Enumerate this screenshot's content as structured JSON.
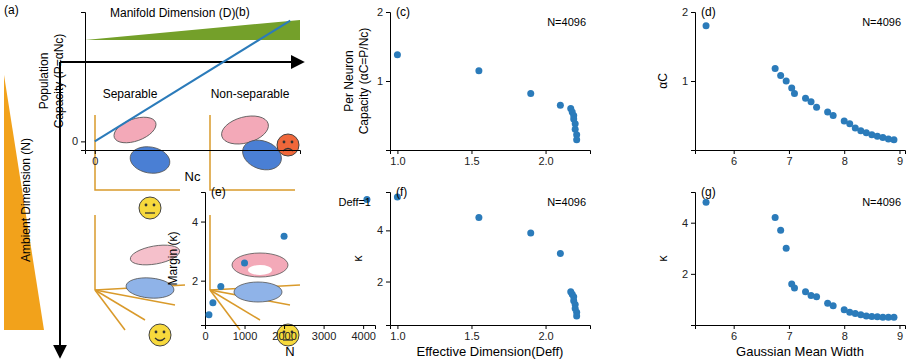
{
  "diagram": {
    "panel": "(a)",
    "top_label": "Manifold Dimension (D)",
    "left_label": "Ambient Dimension (N)",
    "columns": [
      "Separable",
      "Non-separable"
    ]
  },
  "chart_data": [
    {
      "panel": "(b)",
      "type": "line",
      "x_label": "Nc",
      "y_label": [
        "Population",
        "Capacity (P=αNc)"
      ],
      "x": [
        0,
        1
      ],
      "values": [
        0,
        1.4
      ],
      "color": "#2b7bba",
      "xlim": [
        -0.05,
        1.05
      ],
      "ylim": [
        -0.1,
        1.5
      ],
      "xticks": [
        0
      ],
      "yticks": [
        0
      ]
    },
    {
      "panel": "(c)",
      "type": "scatter",
      "annotation": "N=4096",
      "y_label": [
        "Per Neuron",
        "Capacity (αC=P/Nc)"
      ],
      "x": [
        1.0,
        1.55,
        1.9,
        2.1,
        2.17,
        2.18,
        2.19,
        2.19,
        2.2,
        2.2,
        2.21,
        2.21
      ],
      "values": [
        1.38,
        1.15,
        0.82,
        0.65,
        0.6,
        0.55,
        0.5,
        0.45,
        0.38,
        0.3,
        0.22,
        0.15
      ],
      "color": "#2b7bba",
      "xlim": [
        0.95,
        2.3
      ],
      "ylim": [
        0,
        2
      ],
      "xticks": [
        {
          "value": 1,
          "label": "1.0"
        },
        {
          "value": 1.5,
          "label": "1.5"
        },
        {
          "value": 2,
          "label": "2.0"
        }
      ],
      "yticks": [
        1,
        2
      ]
    },
    {
      "panel": "(d)",
      "type": "scatter",
      "annotation": "N=4096",
      "y_label": [
        "αC"
      ],
      "x": [
        5.5,
        6.75,
        6.85,
        6.95,
        7.05,
        7.1,
        7.3,
        7.4,
        7.5,
        7.7,
        7.8,
        8.0,
        8.1,
        8.2,
        8.3,
        8.4,
        8.5,
        8.6,
        8.7,
        8.8,
        8.9
      ],
      "values": [
        1.8,
        1.18,
        1.08,
        1.0,
        0.9,
        0.82,
        0.75,
        0.7,
        0.62,
        0.55,
        0.5,
        0.42,
        0.38,
        0.32,
        0.28,
        0.25,
        0.22,
        0.2,
        0.18,
        0.16,
        0.15
      ],
      "color": "#2b7bba",
      "xlim": [
        5.3,
        9.1
      ],
      "ylim": [
        0,
        2
      ],
      "xticks": [
        6,
        7,
        8,
        9
      ],
      "yticks": [
        1,
        2
      ]
    },
    {
      "panel": "(e)",
      "type": "scatter",
      "annotation": "Deff=1",
      "x_label": "N",
      "y_label": [
        "Margin (κ)"
      ],
      "x": [
        100,
        200,
        400,
        1000,
        2000,
        4096
      ],
      "values": [
        0.85,
        1.25,
        1.8,
        2.6,
        3.5,
        4.75
      ],
      "color": "#2b7bba",
      "xlim": [
        0,
        4300
      ],
      "ylim": [
        0.5,
        5
      ],
      "xticks": [
        0,
        1000,
        2000,
        3000,
        4000
      ],
      "yticks": [
        2,
        4
      ]
    },
    {
      "panel": "(f)",
      "type": "scatter",
      "annotation": "N=4096",
      "x_label": "Effective Dimension(Deff)",
      "y_label": [
        "κ"
      ],
      "x": [
        1.0,
        1.55,
        1.9,
        2.1,
        2.17,
        2.18,
        2.19,
        2.19,
        2.2,
        2.2,
        2.21,
        2.21
      ],
      "values": [
        5.3,
        4.5,
        3.9,
        3.1,
        1.6,
        1.5,
        1.4,
        1.25,
        1.1,
        0.95,
        0.8,
        0.65
      ],
      "color": "#2b7bba",
      "xlim": [
        0.95,
        2.3
      ],
      "ylim": [
        0.3,
        5.5
      ],
      "xticks": [
        {
          "value": 1,
          "label": "1.0"
        },
        {
          "value": 1.5,
          "label": "1.5"
        },
        {
          "value": 2,
          "label": "2.0"
        }
      ],
      "yticks": [
        2,
        4
      ]
    },
    {
      "panel": "(g)",
      "type": "scatter",
      "annotation": "N=4096",
      "x_label": "Gaussian Mean Width",
      "y_label": [
        "κ"
      ],
      "x": [
        5.5,
        6.75,
        6.85,
        6.95,
        7.05,
        7.1,
        7.3,
        7.4,
        7.5,
        7.7,
        7.8,
        8.0,
        8.1,
        8.2,
        8.3,
        8.4,
        8.5,
        8.6,
        8.7,
        8.8,
        8.9
      ],
      "values": [
        4.8,
        4.2,
        3.7,
        3.0,
        1.6,
        1.45,
        1.3,
        1.15,
        1.1,
        0.85,
        0.75,
        0.6,
        0.5,
        0.45,
        0.4,
        0.35,
        0.33,
        0.32,
        0.3,
        0.3,
        0.3
      ],
      "color": "#2b7bba",
      "xlim": [
        5.3,
        9.1
      ],
      "ylim": [
        0,
        5.2
      ],
      "xticks": [
        6,
        7,
        8,
        9
      ],
      "yticks": [
        2,
        4
      ]
    }
  ]
}
